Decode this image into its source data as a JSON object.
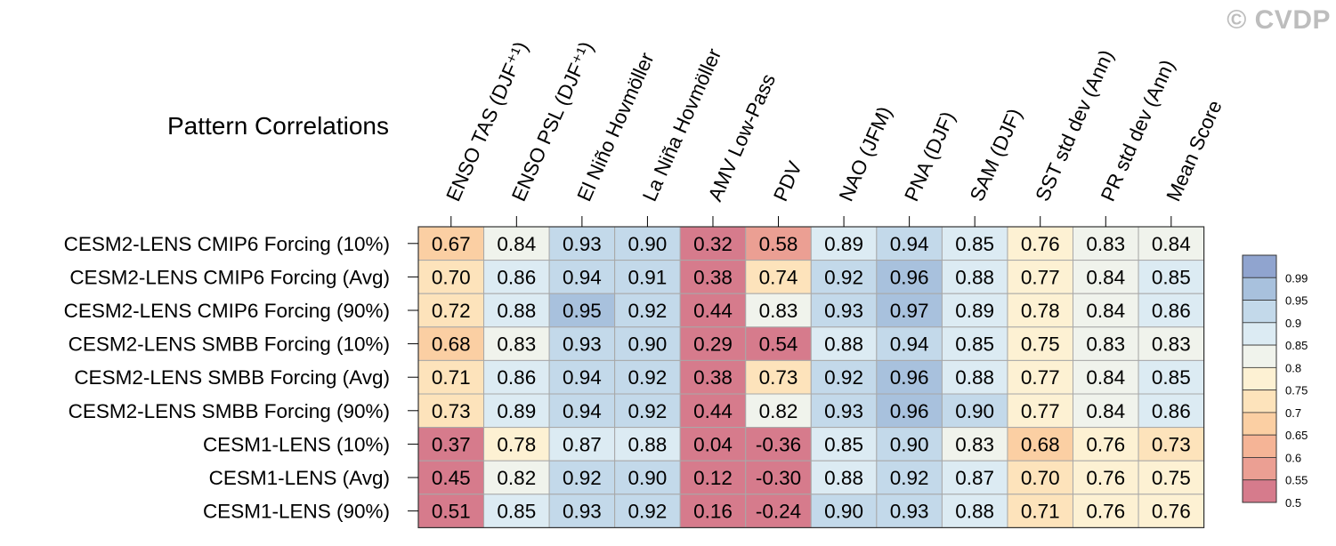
{
  "watermark": "© CVDP",
  "chart_data": {
    "type": "heatmap",
    "title": "Pattern Correlations",
    "columns": [
      "ENSO TAS (DJF⁺¹)",
      "ENSO PSL (DJF⁺¹)",
      "El Niño Hovmöller",
      "La Niña Hovmöller",
      "AMV Low-Pass",
      "PDV",
      "NAO (JFM)",
      "PNA (DJF)",
      "SAM (DJF)",
      "SST std dev (Ann)",
      "PR std dev (Ann)",
      "Mean Score"
    ],
    "rows": [
      "CESM2-LENS CMIP6 Forcing (10%)",
      "CESM2-LENS CMIP6 Forcing (Avg)",
      "CESM2-LENS CMIP6 Forcing (90%)",
      "CESM2-LENS SMBB Forcing (10%)",
      "CESM2-LENS SMBB Forcing (Avg)",
      "CESM2-LENS SMBB Forcing (90%)",
      "CESM1-LENS (10%)",
      "CESM1-LENS (Avg)",
      "CESM1-LENS (90%)"
    ],
    "values": [
      [
        "0.67",
        "0.84",
        "0.93",
        "0.90",
        "0.32",
        "0.58",
        "0.89",
        "0.94",
        "0.85",
        "0.76",
        "0.83",
        "0.84"
      ],
      [
        "0.70",
        "0.86",
        "0.94",
        "0.91",
        "0.38",
        "0.74",
        "0.92",
        "0.96",
        "0.88",
        "0.77",
        "0.84",
        "0.85"
      ],
      [
        "0.72",
        "0.88",
        "0.95",
        "0.92",
        "0.44",
        "0.83",
        "0.93",
        "0.97",
        "0.89",
        "0.78",
        "0.84",
        "0.86"
      ],
      [
        "0.68",
        "0.83",
        "0.93",
        "0.90",
        "0.29",
        "0.54",
        "0.88",
        "0.94",
        "0.85",
        "0.75",
        "0.83",
        "0.83"
      ],
      [
        "0.71",
        "0.86",
        "0.94",
        "0.92",
        "0.38",
        "0.73",
        "0.92",
        "0.96",
        "0.88",
        "0.77",
        "0.84",
        "0.85"
      ],
      [
        "0.73",
        "0.89",
        "0.94",
        "0.92",
        "0.44",
        "0.82",
        "0.93",
        "0.96",
        "0.90",
        "0.77",
        "0.84",
        "0.86"
      ],
      [
        "0.37",
        "0.78",
        "0.87",
        "0.88",
        "0.04",
        "-0.36",
        "0.85",
        "0.90",
        "0.83",
        "0.68",
        "0.76",
        "0.73"
      ],
      [
        "0.45",
        "0.82",
        "0.92",
        "0.90",
        "0.12",
        "-0.30",
        "0.88",
        "0.92",
        "0.87",
        "0.70",
        "0.76",
        "0.75"
      ],
      [
        "0.51",
        "0.85",
        "0.93",
        "0.92",
        "0.16",
        "-0.24",
        "0.90",
        "0.93",
        "0.88",
        "0.71",
        "0.76",
        "0.76"
      ]
    ],
    "colorbar": {
      "labels": [
        "0.99",
        "0.95",
        "0.9",
        "0.85",
        "0.8",
        "0.75",
        "0.7",
        "0.65",
        "0.6",
        "0.55",
        "0.5"
      ],
      "levels": [
        0.5,
        0.55,
        0.6,
        0.65,
        0.7,
        0.75,
        0.8,
        0.85,
        0.9,
        0.95,
        0.99
      ],
      "colors": [
        "#90a4cf",
        "#a8c1dd",
        "#c3d9ea",
        "#dcebf3",
        "#f0f3ec",
        "#fdf1d3",
        "#fde3bb",
        "#fbcfa3",
        "#f5b496",
        "#eb9f93",
        "#d67b8c"
      ]
    }
  }
}
